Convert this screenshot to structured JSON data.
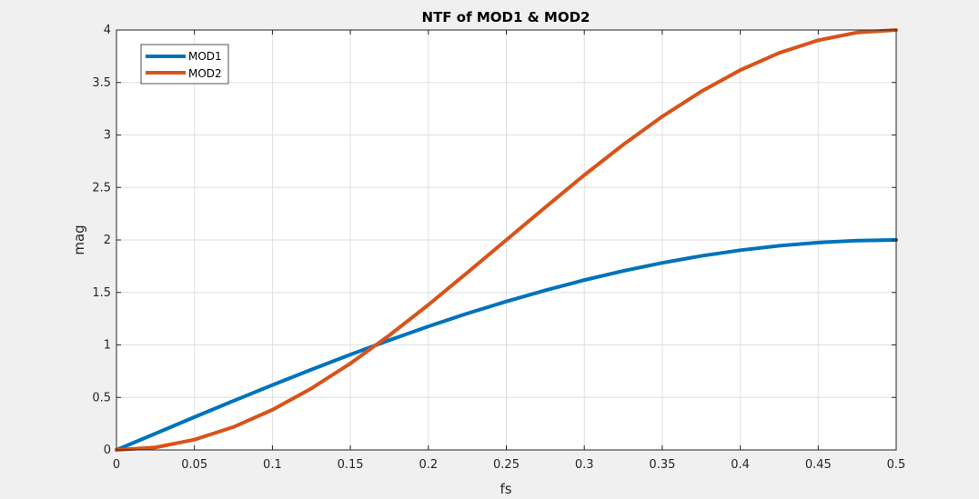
{
  "chart_data": {
    "type": "line",
    "title": "NTF of MOD1 & MOD2",
    "xlabel": "fs",
    "ylabel": "mag",
    "xlim": [
      0,
      0.5
    ],
    "ylim": [
      0,
      4
    ],
    "xticks": [
      "0",
      "0.05",
      "0.1",
      "0.15",
      "0.2",
      "0.25",
      "0.3",
      "0.35",
      "0.4",
      "0.45",
      "0.5"
    ],
    "yticks": [
      "0",
      "0.5",
      "1",
      "1.5",
      "2",
      "2.5",
      "3",
      "3.5",
      "4"
    ],
    "grid": true,
    "legend_position": "top-left",
    "x": [
      0,
      0.025,
      0.05,
      0.075,
      0.1,
      0.125,
      0.15,
      0.175,
      0.2,
      0.225,
      0.25,
      0.275,
      0.3,
      0.325,
      0.35,
      0.375,
      0.4,
      0.425,
      0.45,
      0.475,
      0.5
    ],
    "series": [
      {
        "name": "MOD1",
        "color": "#0072bd",
        "values": [
          0,
          0.156,
          0.313,
          0.467,
          0.618,
          0.765,
          0.908,
          1.045,
          1.176,
          1.3,
          1.414,
          1.52,
          1.618,
          1.705,
          1.782,
          1.848,
          1.902,
          1.945,
          1.975,
          1.994,
          2.0
        ]
      },
      {
        "name": "MOD2",
        "color": "#d95319",
        "values": [
          0,
          0.024,
          0.098,
          0.218,
          0.382,
          0.586,
          0.824,
          1.092,
          1.382,
          1.689,
          2.0,
          2.311,
          2.618,
          2.908,
          3.176,
          3.414,
          3.618,
          3.782,
          3.902,
          3.976,
          4.0
        ]
      }
    ]
  }
}
